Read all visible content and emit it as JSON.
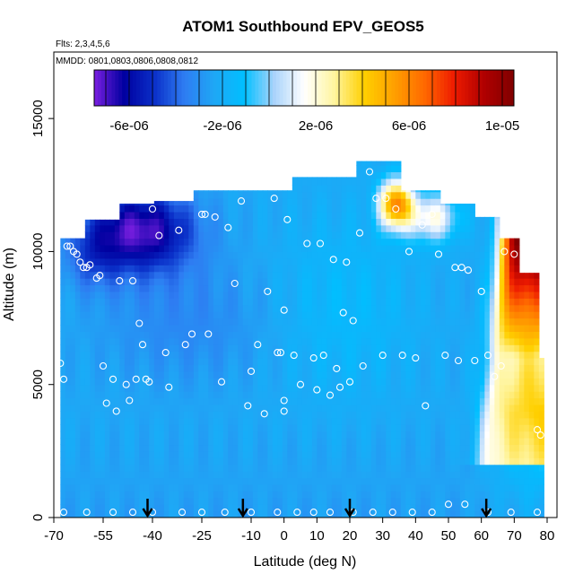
{
  "chart_data": {
    "type": "heatmap",
    "title": "ATOM1 Southbound EPV_GEOS5",
    "annotations": {
      "flights": "Flts: 2,3,4,5,6",
      "dates": "MMDD: 0801,0803,0806,0808,0812"
    },
    "xlabel": "Latitude (deg N)",
    "ylabel": "Altitude (m)",
    "xlim": [
      -70,
      83
    ],
    "ylim": [
      0,
      17500
    ],
    "x_ticks": [
      -70,
      -55,
      -40,
      -25,
      -10,
      0,
      10,
      20,
      30,
      40,
      50,
      60,
      70,
      80
    ],
    "y_ticks": [
      0,
      5000,
      10000,
      15000
    ],
    "colorbar": {
      "range": [
        -7.5e-06,
        1.05e-05
      ],
      "tick_values": [
        -6e-06,
        -2e-06,
        2e-06,
        6e-06,
        1e-05
      ],
      "tick_labels": [
        "-6e-06",
        "-2e-06",
        "2e-06",
        "6e-06",
        "1e-05"
      ],
      "colors": [
        "#7a1fe0",
        "#0000a0",
        "#0a2fc8",
        "#2e7cf2",
        "#1fa7f5",
        "#00bfff",
        "#a9d3fb",
        "#ffffff",
        "#fff5a0",
        "#ffd000",
        "#ffa000",
        "#ff6a00",
        "#ee1b00",
        "#b00000",
        "#800000"
      ]
    },
    "profiles": [
      {
        "lat": -68,
        "top": 10500
      },
      {
        "lat": -60,
        "top": 10500
      },
      {
        "lat": -50,
        "top": 11200
      },
      {
        "lat": -40,
        "top": 11800
      },
      {
        "lat": -27,
        "top": 11900
      },
      {
        "lat": -17,
        "top": 12300
      },
      {
        "lat": -5,
        "top": 12300
      },
      {
        "lat": 3,
        "top": 12300
      },
      {
        "lat": 12,
        "top": 12800
      },
      {
        "lat": 22,
        "top": 12800
      },
      {
        "lat": 27,
        "top": 13400
      },
      {
        "lat": 35,
        "top": 12300
      },
      {
        "lat": 48,
        "top": 11800
      },
      {
        "lat": 58,
        "top": 11300
      },
      {
        "lat": 66,
        "top": 10500
      },
      {
        "lat": 72,
        "top": 9200
      },
      {
        "lat": 78,
        "top": 6000
      },
      {
        "lat": 79,
        "top": 2500
      }
    ],
    "field_features": [
      {
        "name": "southern upper negative core",
        "lat_range": [
          -70,
          -25
        ],
        "alt_range": [
          9000,
          12000
        ],
        "value": -6e-06
      },
      {
        "name": "mid-latitude band",
        "lat_range": [
          -25,
          25
        ],
        "alt_range": [
          0,
          12500
        ],
        "value": -2e-06
      },
      {
        "name": "northern upper positive",
        "lat_range": [
          25,
          45
        ],
        "alt_range": [
          10500,
          13000
        ],
        "value": 6e-06
      },
      {
        "name": "arctic tropopause positive",
        "lat_range": [
          64,
          79
        ],
        "alt_range": [
          5500,
          10500
        ],
        "value": 1e-05
      }
    ],
    "markers": {
      "type": "arrow",
      "lats": [
        -41.5,
        -12.5,
        20.0,
        61.5
      ]
    },
    "points": [
      [
        -68,
        5800
      ],
      [
        -67,
        5200
      ],
      [
        -66,
        10200
      ],
      [
        -65,
        10200
      ],
      [
        -64,
        10000
      ],
      [
        -63,
        9900
      ],
      [
        -62,
        9600
      ],
      [
        -61,
        9400
      ],
      [
        -60,
        9400
      ],
      [
        -59,
        9500
      ],
      [
        -57,
        9000
      ],
      [
        -56,
        9100
      ],
      [
        -55,
        5700
      ],
      [
        -54,
        4300
      ],
      [
        -52,
        5200
      ],
      [
        -51,
        4000
      ],
      [
        -50,
        8900
      ],
      [
        -48,
        5000
      ],
      [
        -47,
        4400
      ],
      [
        -46,
        8900
      ],
      [
        -45,
        5200
      ],
      [
        -44,
        7300
      ],
      [
        -43,
        6500
      ],
      [
        -42,
        5200
      ],
      [
        -41,
        5100
      ],
      [
        -40,
        11600
      ],
      [
        -38,
        10600
      ],
      [
        -36,
        6200
      ],
      [
        -35,
        4900
      ],
      [
        -32,
        10800
      ],
      [
        -30,
        6500
      ],
      [
        -28,
        6900
      ],
      [
        -25,
        11400
      ],
      [
        -24,
        11400
      ],
      [
        -23,
        6900
      ],
      [
        -21,
        11300
      ],
      [
        -19,
        5100
      ],
      [
        -17,
        10900
      ],
      [
        -15,
        8800
      ],
      [
        -13,
        11900
      ],
      [
        -11,
        4200
      ],
      [
        -10,
        5500
      ],
      [
        -8,
        6500
      ],
      [
        -6,
        3900
      ],
      [
        -5,
        8500
      ],
      [
        -3,
        12000
      ],
      [
        -2,
        6200
      ],
      [
        -1,
        6200
      ],
      [
        0,
        4000
      ],
      [
        0,
        7800
      ],
      [
        0,
        4400
      ],
      [
        1,
        11200
      ],
      [
        3,
        6100
      ],
      [
        5,
        5000
      ],
      [
        7,
        10300
      ],
      [
        9,
        6000
      ],
      [
        10,
        4800
      ],
      [
        11,
        10300
      ],
      [
        12,
        6100
      ],
      [
        14,
        4600
      ],
      [
        15,
        9700
      ],
      [
        16,
        5600
      ],
      [
        17,
        4900
      ],
      [
        18,
        7700
      ],
      [
        19,
        9600
      ],
      [
        20,
        5100
      ],
      [
        21,
        7400
      ],
      [
        23,
        10700
      ],
      [
        24,
        5700
      ],
      [
        26,
        13000
      ],
      [
        28,
        12000
      ],
      [
        30,
        6100
      ],
      [
        31,
        12000
      ],
      [
        34,
        11600
      ],
      [
        36,
        6100
      ],
      [
        38,
        10000
      ],
      [
        40,
        6000
      ],
      [
        42,
        11000
      ],
      [
        43,
        4200
      ],
      [
        45,
        11400
      ],
      [
        47,
        9900
      ],
      [
        49,
        6100
      ],
      [
        52,
        9400
      ],
      [
        53,
        5900
      ],
      [
        54,
        9400
      ],
      [
        56,
        9300
      ],
      [
        58,
        5900
      ],
      [
        60,
        8500
      ],
      [
        62,
        6100
      ],
      [
        64,
        5300
      ],
      [
        66,
        5700
      ],
      [
        67,
        10000
      ],
      [
        70,
        9900
      ],
      [
        77,
        3300
      ],
      [
        78,
        3100
      ],
      [
        -67,
        200
      ],
      [
        -60,
        200
      ],
      [
        -52,
        200
      ],
      [
        -46,
        200
      ],
      [
        -40,
        200
      ],
      [
        -31,
        200
      ],
      [
        -25,
        200
      ],
      [
        -18,
        200
      ],
      [
        -10,
        200
      ],
      [
        -2,
        200
      ],
      [
        4,
        200
      ],
      [
        9,
        200
      ],
      [
        14,
        200
      ],
      [
        21,
        200
      ],
      [
        27,
        200
      ],
      [
        33,
        200
      ],
      [
        39,
        200
      ],
      [
        45,
        200
      ],
      [
        50,
        500
      ],
      [
        55,
        500
      ],
      [
        62,
        200
      ],
      [
        69,
        200
      ],
      [
        77,
        200
      ]
    ]
  }
}
